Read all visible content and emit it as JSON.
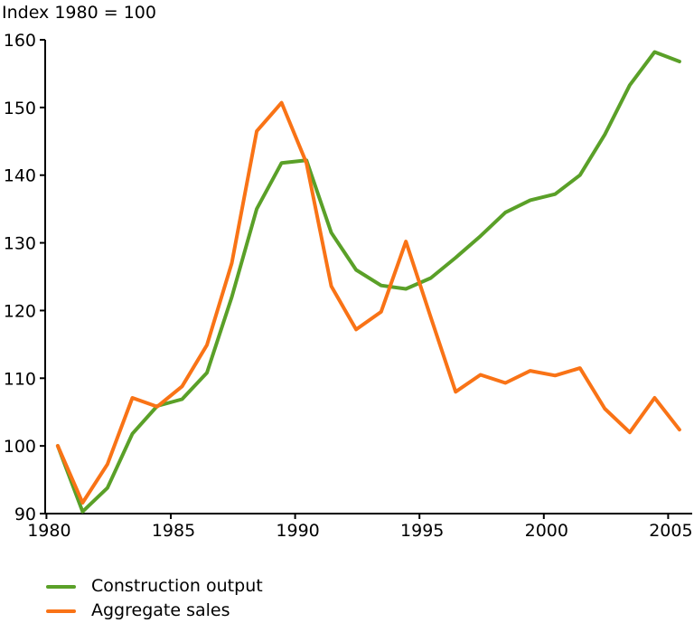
{
  "chart_data": {
    "type": "line",
    "title": "Index 1980 = 100",
    "x": [
      1980,
      1981,
      1982,
      1983,
      1984,
      1985,
      1986,
      1987,
      1988,
      1989,
      1990,
      1991,
      1992,
      1993,
      1994,
      1995,
      1996,
      1997,
      1998,
      1999,
      2000,
      2001,
      2002,
      2003,
      2004,
      2005
    ],
    "series": [
      {
        "name": "Construction output",
        "color": "#5aa028",
        "values": [
          100,
          90.3,
          93.8,
          101.8,
          105.9,
          106.9,
          110.8,
          122.0,
          135.0,
          141.8,
          142.2,
          131.5,
          126.0,
          123.7,
          123.2,
          124.8,
          127.8,
          131.0,
          134.5,
          136.3,
          137.2,
          140.0,
          146.0,
          153.3,
          158.2,
          156.8
        ]
      },
      {
        "name": "Aggregate sales",
        "color": "#f97316",
        "values": [
          100,
          91.6,
          97.3,
          107.1,
          105.8,
          108.8,
          114.9,
          127.0,
          146.5,
          150.7,
          141.8,
          123.6,
          117.2,
          119.8,
          130.2,
          119.0,
          108.0,
          110.5,
          109.3,
          111.1,
          110.4,
          111.5,
          105.5,
          102.0,
          107.1,
          102.4
        ]
      }
    ],
    "ylim": [
      90,
      160
    ],
    "y_ticks": [
      90,
      100,
      110,
      120,
      130,
      140,
      150,
      160
    ],
    "x_ticks": [
      1980,
      1985,
      1990,
      1995,
      2000,
      2005
    ],
    "xlabel": "",
    "ylabel": "",
    "grid": false,
    "legend_position": "bottom-left",
    "axis_color": "#000000",
    "background": "#ffffff"
  }
}
